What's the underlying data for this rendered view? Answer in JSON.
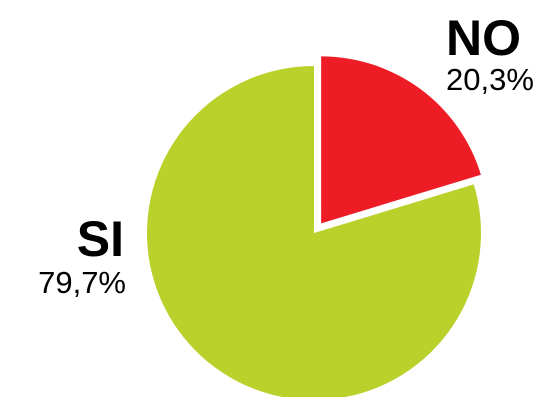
{
  "chart_data": {
    "type": "pie",
    "title": "",
    "start_angle_deg": 0,
    "direction": "clockwise",
    "slices": [
      {
        "label": "NO",
        "value": 20.3,
        "value_label": "20,3%",
        "color": "#ee1c25",
        "exploded": true
      },
      {
        "label": "SI",
        "value": 79.7,
        "value_label": "79,7%",
        "color": "#bad12c",
        "exploded": false
      }
    ],
    "legend": "none"
  }
}
